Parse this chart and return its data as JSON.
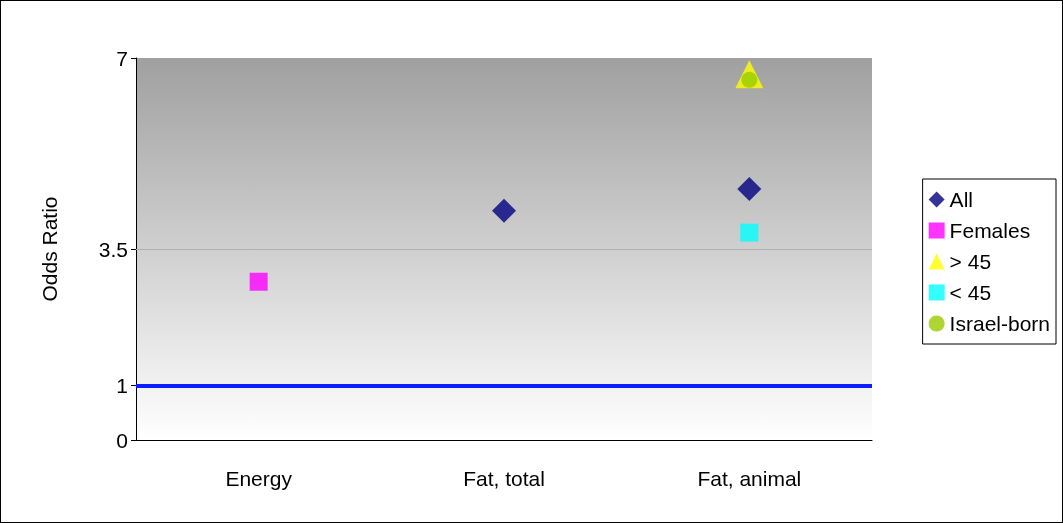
{
  "chart_data": {
    "type": "scatter",
    "ylabel": "Odds Ratio",
    "categories": [
      "Energy",
      "Fat, total",
      "Fat, animal"
    ],
    "series": [
      {
        "name": "All",
        "color": "#000080",
        "marker": "diamond",
        "values": [
          null,
          4.2,
          4.6
        ]
      },
      {
        "name": "Females",
        "color": "#ff00ff",
        "marker": "square",
        "values": [
          2.9,
          null,
          null
        ]
      },
      {
        "name": "> 45",
        "color": "#ffff00",
        "marker": "triangle",
        "values": [
          null,
          null,
          6.7
        ]
      },
      {
        "name": "< 45",
        "color": "#00ffff",
        "marker": "square",
        "values": [
          null,
          null,
          3.8
        ]
      },
      {
        "name": "Israel-born",
        "color": "#99cc00",
        "marker": "circle",
        "values": [
          null,
          null,
          6.6
        ]
      }
    ],
    "ylim": [
      0,
      7
    ],
    "yticks": [
      0,
      1,
      3.5,
      7
    ],
    "legend": "right",
    "ref_lines": [
      {
        "axis": "y",
        "value": 1,
        "color": "#0a1eff",
        "line_style": "solid"
      },
      {
        "axis": "y",
        "value": 3.5,
        "color": "#b0b0b0",
        "line_style": "solid"
      }
    ]
  }
}
